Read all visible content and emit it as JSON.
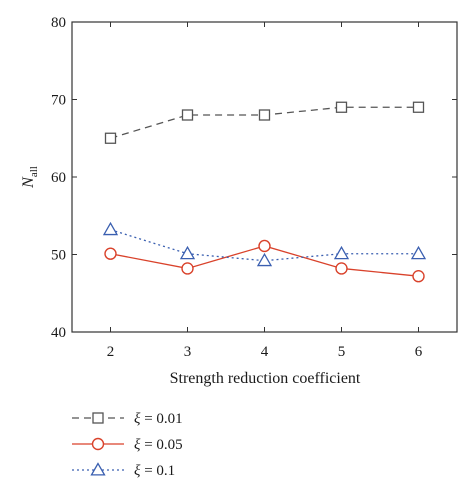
{
  "chart_data": {
    "type": "line",
    "xlabel": "Strength reduction coefficient",
    "ylabel_main": "N",
    "ylabel_sub": "all",
    "x": [
      2,
      3,
      4,
      5,
      6
    ],
    "xlim": [
      1.5,
      6.5
    ],
    "ylim": [
      40,
      80
    ],
    "yticks": [
      40,
      50,
      60,
      70,
      80
    ],
    "xticks": [
      2,
      3,
      4,
      5,
      6
    ],
    "grid": false,
    "legend_position": "bottom-left (below plot)",
    "series": [
      {
        "name": "ξ = 0.01",
        "legend_symbol": "ξ",
        "legend_value": " = 0.01",
        "values": [
          65,
          68,
          68,
          69,
          69
        ],
        "color": "#555555",
        "marker": "square",
        "line": "dashed"
      },
      {
        "name": "ξ = 0.05",
        "legend_symbol": "ξ",
        "legend_value": " = 0.05",
        "values": [
          50.1,
          48.2,
          51.1,
          48.2,
          47.2
        ],
        "color": "#d9422b",
        "marker": "circle",
        "line": "solid"
      },
      {
        "name": "ξ = 0.1",
        "legend_symbol": "ξ",
        "legend_value": " = 0.1",
        "values": [
          53.2,
          50.1,
          49.2,
          50.1,
          50.1
        ],
        "color": "#3a5fb0",
        "marker": "triangle",
        "line": "dotted"
      }
    ]
  }
}
